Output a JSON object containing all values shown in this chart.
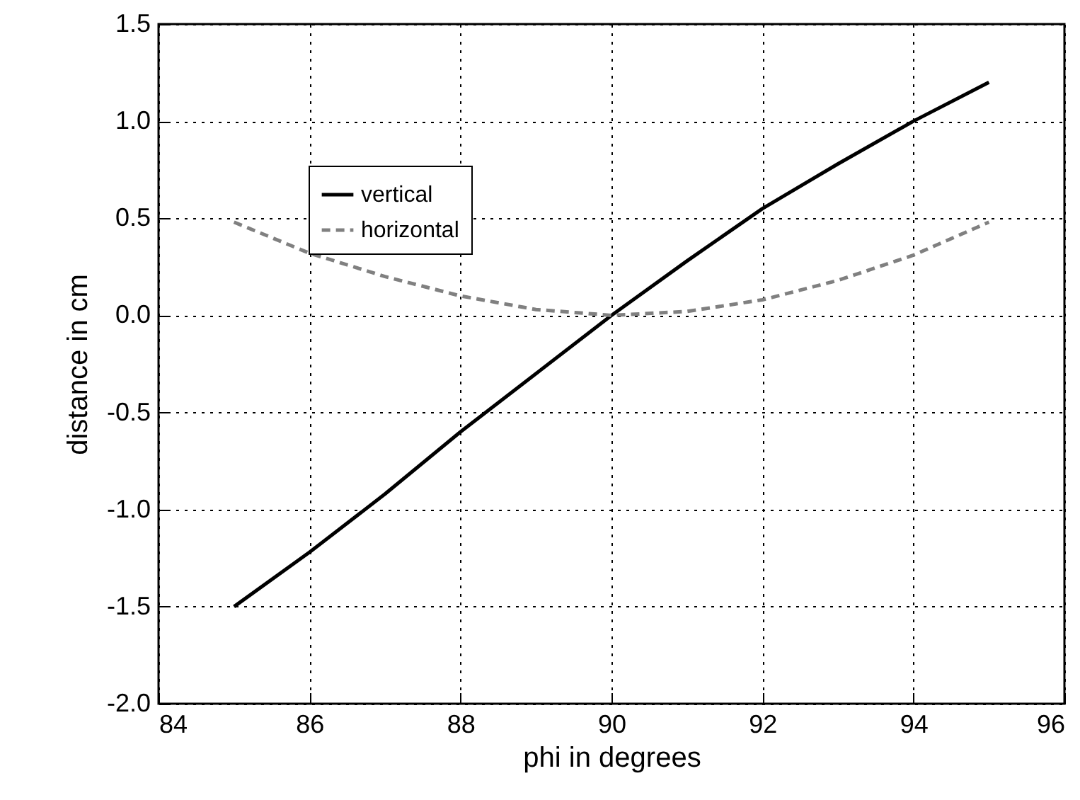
{
  "chart_data": {
    "type": "line",
    "xlabel": "phi in degrees",
    "ylabel": "distance in cm",
    "x": [
      85,
      86,
      87,
      88,
      89,
      90,
      91,
      92,
      93,
      94,
      95
    ],
    "series": [
      {
        "name": "vertical",
        "color": "#000000",
        "line_style": "solid",
        "values": [
          -1.5,
          -1.22,
          -0.92,
          -0.6,
          -0.3,
          0,
          0.28,
          0.55,
          0.78,
          1.0,
          1.2
        ]
      },
      {
        "name": "horizontal",
        "color": "#808080",
        "line_style": "dashed",
        "values": [
          0.48,
          0.32,
          0.2,
          0.1,
          0.03,
          0,
          0.02,
          0.08,
          0.18,
          0.31,
          0.48
        ]
      }
    ],
    "xlim": [
      84,
      96
    ],
    "xticks": [
      84,
      86,
      88,
      90,
      92,
      94,
      96
    ],
    "ylim": [
      -2.0,
      1.5
    ],
    "yticks": [
      {
        "value": -2,
        "label": "-2.0"
      },
      -1.5,
      {
        "value": -1,
        "label": "-1.0"
      },
      -0.5,
      {
        "value": 0,
        "label": "0.0"
      },
      0.5,
      {
        "value": 1,
        "label": "1.0"
      },
      1.5
    ],
    "grid": true,
    "legend": "top left",
    "marker": "none"
  }
}
